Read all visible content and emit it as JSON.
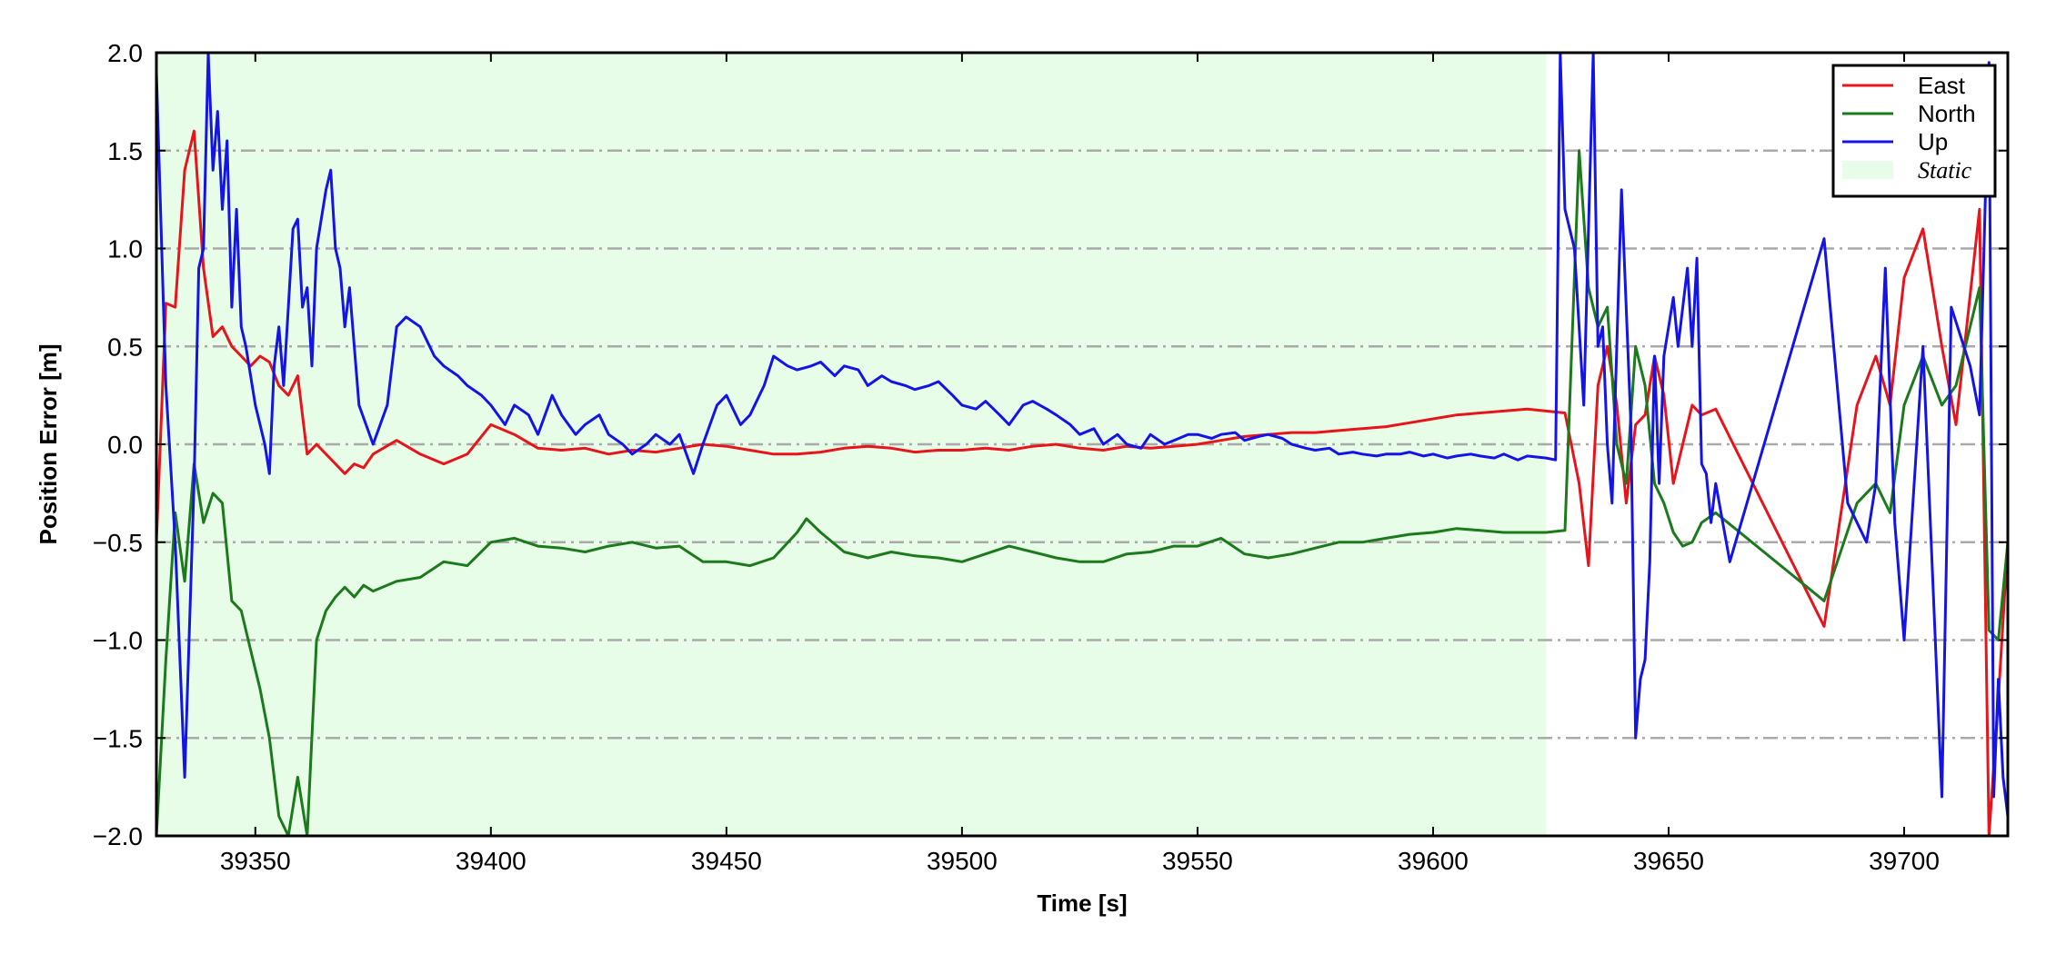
{
  "chart_data": {
    "type": "line",
    "xlabel": "Time [s]",
    "ylabel": "Position Error [m]",
    "xlim": [
      39329,
      39722
    ],
    "ylim": [
      -2.0,
      2.0
    ],
    "xticks": [
      39350,
      39400,
      39450,
      39500,
      39550,
      39600,
      39650,
      39700
    ],
    "xtick_labels": [
      "39350",
      "39400",
      "39450",
      "39500",
      "39550",
      "39600",
      "39650",
      "39700"
    ],
    "yticks": [
      -2.0,
      -1.5,
      -1.0,
      -0.5,
      0.0,
      0.5,
      1.0,
      1.5,
      2.0
    ],
    "ytick_labels": [
      "−2.0",
      "−1.5",
      "−1.0",
      "−0.5",
      "0.0",
      "0.5",
      "1.0",
      "1.5",
      "2.0"
    ],
    "grid": "horizontal dash-dot",
    "legend_position": "top-right",
    "static_region": {
      "label": "Static",
      "x": [
        39329,
        39624
      ],
      "color": "#e8fde8"
    },
    "series": [
      {
        "name": "East",
        "color": "#e8141b",
        "x": [
          39329,
          39331,
          39333,
          39335,
          39337,
          39339,
          39341,
          39343,
          39345,
          39347,
          39349,
          39351,
          39353,
          39355,
          39357,
          39359,
          39361,
          39363,
          39365,
          39367,
          39369,
          39371,
          39373,
          39375,
          39380,
          39385,
          39390,
          39395,
          39400,
          39405,
          39410,
          39415,
          39420,
          39425,
          39430,
          39435,
          39440,
          39445,
          39450,
          39455,
          39460,
          39465,
          39470,
          39475,
          39480,
          39485,
          39490,
          39495,
          39500,
          39505,
          39510,
          39515,
          39520,
          39525,
          39530,
          39535,
          39540,
          39545,
          39550,
          39555,
          39560,
          39565,
          39570,
          39575,
          39580,
          39585,
          39590,
          39595,
          39600,
          39605,
          39610,
          39615,
          39620,
          39624,
          39628,
          39631,
          39633,
          39635,
          39637,
          39639,
          39641,
          39643,
          39645,
          39647,
          39649,
          39651,
          39653,
          39655,
          39657,
          39660,
          39683,
          39690,
          39694,
          39697,
          39700,
          39704,
          39708,
          39711,
          39716,
          39718,
          39720,
          39722
        ],
        "y": [
          -0.5,
          0.72,
          0.7,
          1.4,
          1.6,
          0.9,
          0.55,
          0.6,
          0.5,
          0.45,
          0.4,
          0.45,
          0.42,
          0.3,
          0.25,
          0.35,
          -0.05,
          0.0,
          -0.05,
          -0.1,
          -0.15,
          -0.1,
          -0.12,
          -0.05,
          0.02,
          -0.05,
          -0.1,
          -0.05,
          0.1,
          0.05,
          -0.02,
          -0.03,
          -0.02,
          -0.05,
          -0.03,
          -0.04,
          -0.02,
          0.0,
          -0.01,
          -0.03,
          -0.05,
          -0.05,
          -0.04,
          -0.02,
          -0.01,
          -0.02,
          -0.04,
          -0.03,
          -0.03,
          -0.02,
          -0.03,
          -0.01,
          0.0,
          -0.02,
          -0.03,
          -0.01,
          -0.02,
          -0.01,
          0.0,
          0.02,
          0.04,
          0.05,
          0.06,
          0.06,
          0.07,
          0.08,
          0.09,
          0.11,
          0.13,
          0.15,
          0.16,
          0.17,
          0.18,
          0.17,
          0.16,
          -0.2,
          -0.62,
          0.3,
          0.5,
          0.2,
          -0.3,
          0.1,
          0.15,
          0.45,
          0.25,
          -0.2,
          0.0,
          0.2,
          0.15,
          0.18,
          -0.93,
          0.2,
          0.45,
          0.2,
          0.85,
          1.1,
          0.5,
          0.1,
          1.2,
          -2.0,
          -1.3,
          -0.5
        ]
      },
      {
        "name": "North",
        "color": "#1c7a1c",
        "x": [
          39329,
          39331,
          39333,
          39335,
          39337,
          39339,
          39341,
          39343,
          39345,
          39347,
          39349,
          39351,
          39353,
          39355,
          39357,
          39359,
          39361,
          39363,
          39365,
          39367,
          39369,
          39371,
          39373,
          39375,
          39380,
          39385,
          39390,
          39395,
          39400,
          39405,
          39410,
          39415,
          39420,
          39425,
          39430,
          39435,
          39440,
          39445,
          39450,
          39455,
          39460,
          39465,
          39467,
          39470,
          39475,
          39480,
          39485,
          39490,
          39495,
          39500,
          39505,
          39510,
          39515,
          39520,
          39525,
          39530,
          39535,
          39540,
          39545,
          39550,
          39555,
          39560,
          39565,
          39570,
          39575,
          39580,
          39585,
          39590,
          39595,
          39600,
          39605,
          39610,
          39615,
          39620,
          39624,
          39628,
          39631,
          39633,
          39635,
          39637,
          39639,
          39641,
          39643,
          39645,
          39647,
          39649,
          39651,
          39653,
          39655,
          39657,
          39660,
          39683,
          39690,
          39694,
          39697,
          39700,
          39704,
          39708,
          39711,
          39716,
          39718,
          39720,
          39722
        ],
        "y": [
          -2.0,
          -1.1,
          -0.35,
          -0.7,
          -0.1,
          -0.4,
          -0.25,
          -0.3,
          -0.8,
          -0.85,
          -1.05,
          -1.25,
          -1.5,
          -1.9,
          -2.0,
          -1.7,
          -2.0,
          -1.0,
          -0.85,
          -0.78,
          -0.73,
          -0.78,
          -0.72,
          -0.75,
          -0.7,
          -0.68,
          -0.6,
          -0.62,
          -0.5,
          -0.48,
          -0.52,
          -0.53,
          -0.55,
          -0.52,
          -0.5,
          -0.53,
          -0.52,
          -0.6,
          -0.6,
          -0.62,
          -0.58,
          -0.45,
          -0.38,
          -0.45,
          -0.55,
          -0.58,
          -0.55,
          -0.57,
          -0.58,
          -0.6,
          -0.56,
          -0.52,
          -0.55,
          -0.58,
          -0.6,
          -0.6,
          -0.56,
          -0.55,
          -0.52,
          -0.52,
          -0.48,
          -0.56,
          -0.58,
          -0.56,
          -0.53,
          -0.5,
          -0.5,
          -0.48,
          -0.46,
          -0.45,
          -0.43,
          -0.44,
          -0.45,
          -0.45,
          -0.45,
          -0.44,
          1.5,
          0.8,
          0.6,
          0.7,
          0.0,
          -0.2,
          0.5,
          0.3,
          -0.2,
          -0.3,
          -0.45,
          -0.52,
          -0.5,
          -0.4,
          -0.35,
          -0.8,
          -0.3,
          -0.2,
          -0.35,
          0.2,
          0.45,
          0.2,
          0.3,
          0.8,
          -0.95,
          -1.0,
          -0.5
        ]
      },
      {
        "name": "Up",
        "color": "#1414e6",
        "x": [
          39329,
          39331,
          39333,
          39335,
          39337,
          39338,
          39339,
          39340,
          39341,
          39342,
          39343,
          39344,
          39345,
          39346,
          39347,
          39348,
          39349,
          39350,
          39351,
          39352,
          39353,
          39354,
          39355,
          39356,
          39357,
          39358,
          39359,
          39360,
          39361,
          39362,
          39363,
          39365,
          39366,
          39367,
          39368,
          39369,
          39370,
          39372,
          39375,
          39378,
          39380,
          39382,
          39385,
          39388,
          39390,
          39393,
          39395,
          39398,
          39400,
          39403,
          39405,
          39408,
          39410,
          39413,
          39415,
          39418,
          39420,
          39423,
          39425,
          39428,
          39430,
          39433,
          39435,
          39438,
          39440,
          39443,
          39445,
          39448,
          39450,
          39453,
          39455,
          39458,
          39460,
          39463,
          39465,
          39468,
          39470,
          39473,
          39475,
          39478,
          39480,
          39483,
          39485,
          39488,
          39490,
          39493,
          39495,
          39498,
          39500,
          39503,
          39505,
          39508,
          39510,
          39513,
          39515,
          39518,
          39520,
          39523,
          39525,
          39528,
          39530,
          39533,
          39535,
          39538,
          39540,
          39543,
          39545,
          39548,
          39550,
          39553,
          39555,
          39558,
          39560,
          39563,
          39565,
          39568,
          39570,
          39573,
          39575,
          39578,
          39580,
          39583,
          39585,
          39588,
          39590,
          39593,
          39595,
          39598,
          39600,
          39603,
          39605,
          39608,
          39610,
          39613,
          39615,
          39618,
          39620,
          39624,
          39626,
          39627,
          39628,
          39630,
          39632,
          39634,
          39635,
          39636,
          39637,
          39638,
          39640,
          39642,
          39643,
          39644,
          39645,
          39646,
          39647,
          39648,
          39649,
          39650,
          39651,
          39652,
          39654,
          39655,
          39656,
          39657,
          39658,
          39659,
          39660,
          39663,
          39683,
          39688,
          39692,
          39694,
          39696,
          39698,
          39700,
          39704,
          39708,
          39710,
          39714,
          39716,
          39718,
          39719,
          39720,
          39721,
          39722
        ],
        "y": [
          1.9,
          0.3,
          -0.5,
          -1.7,
          -0.2,
          0.9,
          1.0,
          2.0,
          1.4,
          1.7,
          1.2,
          1.55,
          0.7,
          1.2,
          0.6,
          0.5,
          0.35,
          0.2,
          0.1,
          0.0,
          -0.15,
          0.4,
          0.6,
          0.3,
          0.7,
          1.1,
          1.15,
          0.7,
          0.8,
          0.4,
          1.0,
          1.3,
          1.4,
          1.0,
          0.9,
          0.6,
          0.8,
          0.2,
          0.0,
          0.2,
          0.6,
          0.65,
          0.6,
          0.45,
          0.4,
          0.35,
          0.3,
          0.25,
          0.2,
          0.1,
          0.2,
          0.15,
          0.05,
          0.25,
          0.15,
          0.05,
          0.1,
          0.15,
          0.05,
          0.0,
          -0.05,
          0.0,
          0.05,
          0.0,
          0.05,
          -0.15,
          0.0,
          0.2,
          0.25,
          0.1,
          0.15,
          0.3,
          0.45,
          0.4,
          0.38,
          0.4,
          0.42,
          0.35,
          0.4,
          0.38,
          0.3,
          0.35,
          0.32,
          0.3,
          0.28,
          0.3,
          0.32,
          0.25,
          0.2,
          0.18,
          0.22,
          0.15,
          0.1,
          0.2,
          0.22,
          0.18,
          0.15,
          0.1,
          0.05,
          0.08,
          0.0,
          0.05,
          0.0,
          -0.02,
          0.05,
          0.0,
          0.02,
          0.05,
          0.05,
          0.03,
          0.05,
          0.06,
          0.02,
          0.04,
          0.05,
          0.03,
          0.0,
          -0.02,
          -0.03,
          -0.02,
          -0.05,
          -0.04,
          -0.05,
          -0.06,
          -0.05,
          -0.05,
          -0.04,
          -0.06,
          -0.05,
          -0.07,
          -0.06,
          -0.05,
          -0.06,
          -0.07,
          -0.05,
          -0.08,
          -0.06,
          -0.07,
          -0.08,
          2.0,
          1.2,
          1.0,
          0.2,
          2.0,
          0.5,
          0.6,
          0.0,
          -0.3,
          1.3,
          0.1,
          -1.5,
          -1.2,
          -1.1,
          -0.6,
          0.45,
          -0.2,
          0.45,
          0.6,
          0.75,
          0.5,
          0.9,
          0.5,
          0.95,
          -0.1,
          -0.15,
          -0.4,
          -0.2,
          -0.6,
          1.05,
          -0.3,
          -0.5,
          -0.2,
          0.9,
          -0.4,
          -1.0,
          0.5,
          -1.8,
          0.7,
          0.4,
          0.15,
          1.95,
          -1.8,
          -1.2,
          -1.7,
          -1.9
        ]
      }
    ]
  }
}
